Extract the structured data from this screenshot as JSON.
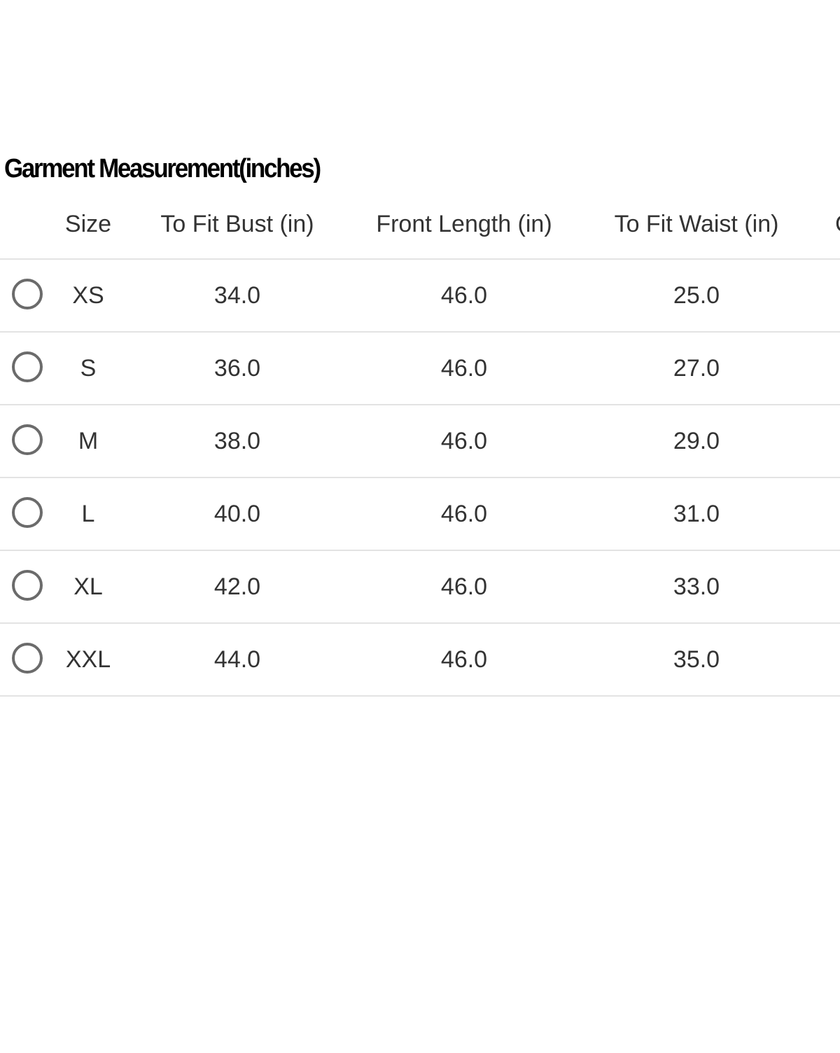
{
  "title": "Garment Measurement(inches)",
  "table": {
    "headers": [
      "Size",
      "To Fit Bust (in)",
      "Front Length (in)",
      "To Fit Waist (in)"
    ],
    "partial_header": "C",
    "rows": [
      {
        "size": "XS",
        "bust": "34.0",
        "front_length": "46.0",
        "waist": "25.0"
      },
      {
        "size": "S",
        "bust": "36.0",
        "front_length": "46.0",
        "waist": "27.0"
      },
      {
        "size": "M",
        "bust": "38.0",
        "front_length": "46.0",
        "waist": "29.0"
      },
      {
        "size": "L",
        "bust": "40.0",
        "front_length": "46.0",
        "waist": "31.0"
      },
      {
        "size": "XL",
        "bust": "42.0",
        "front_length": "46.0",
        "waist": "33.0"
      },
      {
        "size": "XXL",
        "bust": "44.0",
        "front_length": "46.0",
        "waist": "35.0"
      }
    ]
  },
  "colors": {
    "radio_border": "#6b6b6b",
    "divider": "#e3e3e3",
    "text": "#333333"
  }
}
